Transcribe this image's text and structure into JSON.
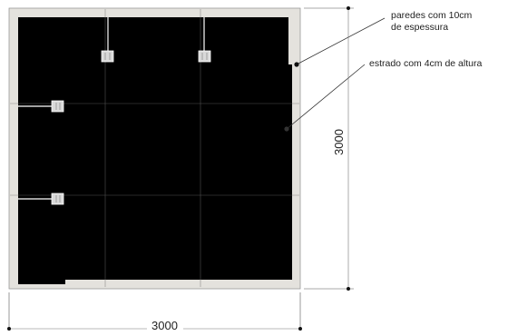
{
  "annotations": {
    "walls": [
      "paredes com 10cm",
      "de espessura"
    ],
    "platform": "estrado com 4cm de altura"
  },
  "dimensions": {
    "width": "3000",
    "height": "3000"
  },
  "colors": {
    "wall": "#e4e2dd",
    "floor": "#000000",
    "line": "#333333",
    "grid": "#6e6e6e",
    "text": "#222222"
  }
}
